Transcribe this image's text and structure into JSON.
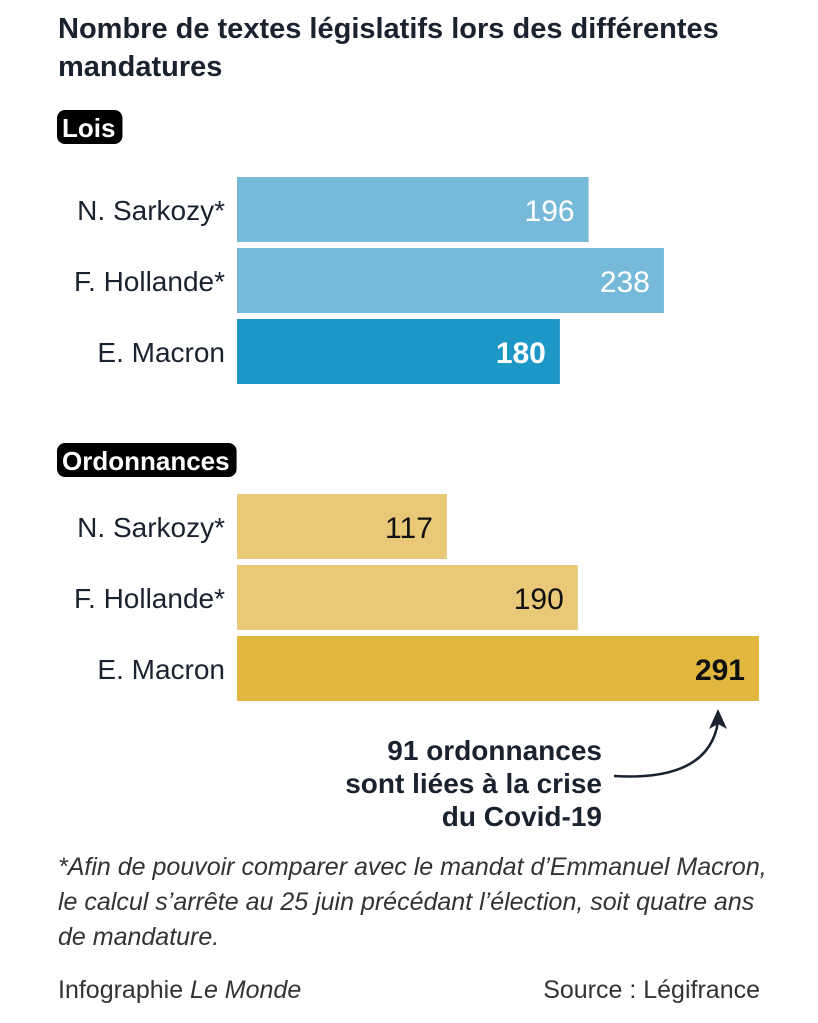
{
  "chart_data": {
    "type": "bar",
    "orientation": "horizontal",
    "title": "Nombre de textes législatifs lors des différentes mandatures",
    "xlim": [
      0,
      291
    ],
    "groups": [
      {
        "name": "Lois",
        "categories": [
          "N. Sarkozy*",
          "F. Hollande*",
          "E. Macron"
        ],
        "values": [
          196,
          238,
          180
        ],
        "colors": [
          "#76b9d9",
          "#76b9d9",
          "#1d98c6"
        ]
      },
      {
        "name": "Ordonnances",
        "categories": [
          "N. Sarkozy*",
          "F. Hollande*",
          "E. Macron"
        ],
        "values": [
          117,
          190,
          291
        ],
        "colors": [
          "#e9c878",
          "#e9c878",
          "#e2b740"
        ]
      }
    ],
    "annotation": [
      "91 ordonnances",
      "sont liées à la crise",
      "du Covid-19"
    ]
  },
  "footnote": "*Afin de pouvoir comparer avec le mandat d’Emmanuel Macron, le calcul s’arrête au 25 juin précédant l’élection, soit quatre ans de mandature.",
  "credit_prefix": "Infographie ",
  "credit_brand": "Le Monde",
  "source": "Source : Légifrance"
}
